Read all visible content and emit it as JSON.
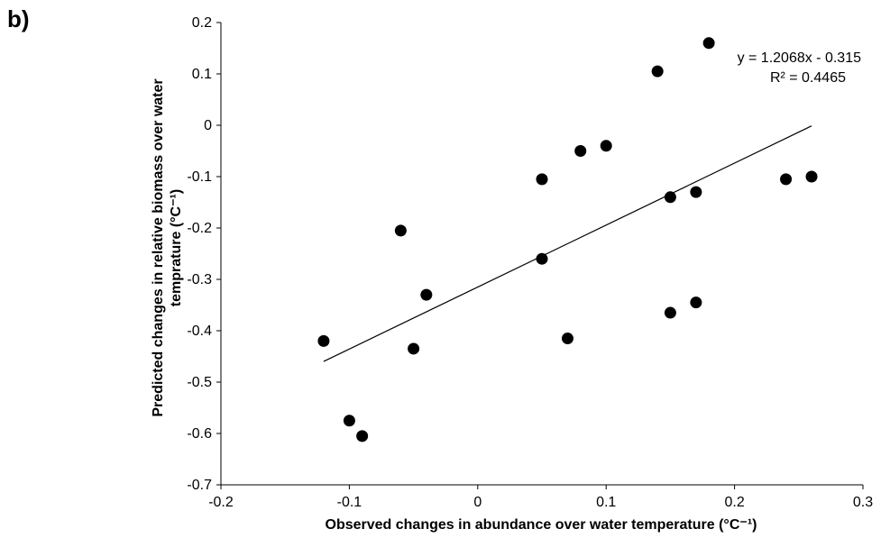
{
  "panel_label": "b)",
  "chart_data": {
    "type": "scatter",
    "title": "",
    "xlabel": "Observed changes in abundance over water temperature  (°C⁻¹)",
    "ylabel_line1": "Predicted changes in relative biomass over water",
    "ylabel_line2": "temprature (°C⁻¹)",
    "xlim": [
      -0.2,
      0.3
    ],
    "ylim": [
      -0.7,
      0.2
    ],
    "x_ticks": [
      "-0.2",
      "-0.1",
      "0",
      "0.1",
      "0.2",
      "0.3"
    ],
    "y_ticks": [
      "0.2",
      "0.1",
      "0",
      "-0.1",
      "-0.2",
      "-0.3",
      "-0.4",
      "-0.5",
      "-0.6",
      "-0.7"
    ],
    "points": [
      {
        "x": -0.12,
        "y": -0.42
      },
      {
        "x": -0.1,
        "y": -0.575
      },
      {
        "x": -0.09,
        "y": -0.605
      },
      {
        "x": -0.06,
        "y": -0.205
      },
      {
        "x": -0.05,
        "y": -0.435
      },
      {
        "x": -0.04,
        "y": -0.33
      },
      {
        "x": 0.05,
        "y": -0.105
      },
      {
        "x": 0.05,
        "y": -0.26
      },
      {
        "x": 0.07,
        "y": -0.415
      },
      {
        "x": 0.08,
        "y": -0.05
      },
      {
        "x": 0.1,
        "y": -0.04
      },
      {
        "x": 0.14,
        "y": 0.105
      },
      {
        "x": 0.15,
        "y": -0.14
      },
      {
        "x": 0.15,
        "y": -0.365
      },
      {
        "x": 0.17,
        "y": -0.13
      },
      {
        "x": 0.17,
        "y": -0.345
      },
      {
        "x": 0.18,
        "y": 0.16
      },
      {
        "x": 0.24,
        "y": -0.105
      },
      {
        "x": 0.26,
        "y": -0.1
      }
    ],
    "trendline": {
      "slope": 1.2068,
      "intercept": -0.315,
      "x_range": [
        -0.12,
        0.26
      ],
      "equation_label": "y = 1.2068x - 0.315",
      "r2_label": "R² = 0.4465"
    },
    "grid": false,
    "legend": "none",
    "marker_color": "#000000"
  }
}
